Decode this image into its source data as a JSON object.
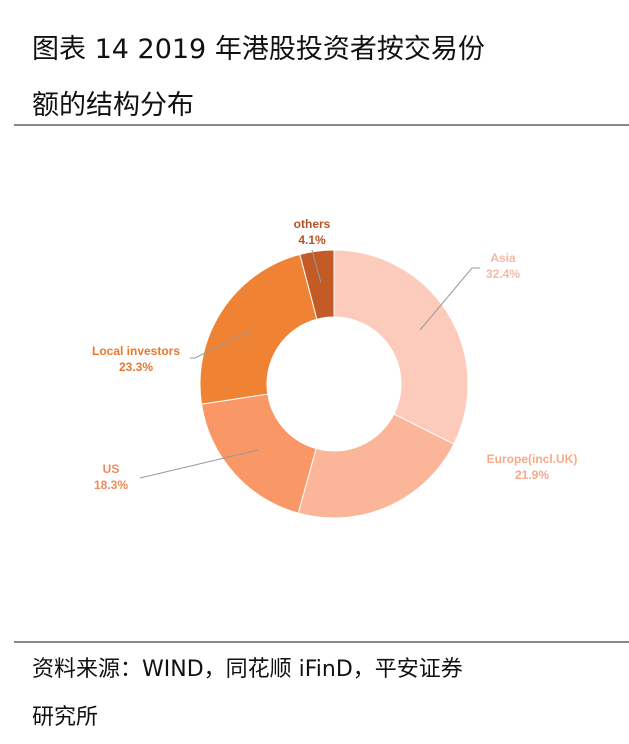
{
  "title": {
    "line1": "图表 14  2019 年港股投资者按交易份",
    "line2": "额的结构分布"
  },
  "source": {
    "line1": "资料来源：WIND，同花顺 iFinD，平安证券",
    "line2": "研究所"
  },
  "chart_data": {
    "type": "pie",
    "variant": "donut",
    "categories": [
      "Asia",
      "Europe(incl.UK)",
      "US",
      "Local investors",
      "others"
    ],
    "values": [
      32.4,
      21.9,
      18.3,
      23.3,
      4.1
    ],
    "value_labels": [
      "32.4%",
      "21.9%",
      "18.3%",
      "23.3%",
      "4.1%"
    ],
    "colors": [
      "#fccbbb",
      "#fbb598",
      "#f99766",
      "#f08234",
      "#c45a26"
    ],
    "label_colors": [
      "#f7b9a6",
      "#f7a98a",
      "#f08a5a",
      "#e9782e",
      "#b55322"
    ],
    "start": "12 o'clock, clockwise",
    "legend": "none"
  }
}
